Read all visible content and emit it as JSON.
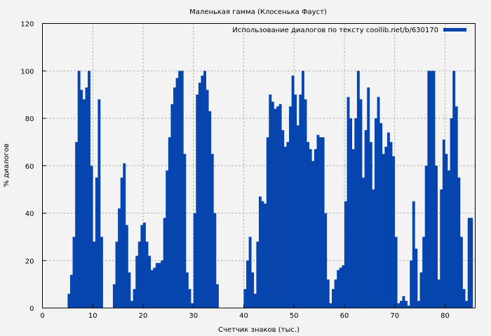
{
  "chart_data": {
    "type": "bar",
    "title": "Маленькая гамма (Клосенька Фауст)",
    "xlabel": "Счетчик знаков (тыс.)",
    "ylabel": "% диалогов",
    "xlim": [
      0,
      86
    ],
    "ylim": [
      0,
      120
    ],
    "xticks": [
      0,
      10,
      20,
      30,
      40,
      50,
      60,
      70,
      80
    ],
    "yticks": [
      0,
      20,
      40,
      60,
      80,
      100,
      120
    ],
    "grid": true,
    "legend_position": "top-right",
    "bar_step": 0.5,
    "series": [
      {
        "name": "Использование диалогов по тексту coollib.net/b/630170",
        "color": "#0645ad",
        "x": [
          5,
          5.5,
          6,
          6.5,
          7,
          7.5,
          8,
          8.5,
          9,
          9.5,
          10,
          10.5,
          11,
          11.5,
          14,
          14.5,
          15,
          15.5,
          16,
          16.5,
          17,
          17.5,
          18,
          18.5,
          19,
          19.5,
          20,
          20.5,
          21,
          21.5,
          22,
          22.5,
          23,
          23.5,
          24,
          24.5,
          25,
          25.5,
          26,
          26.5,
          27,
          27.5,
          28,
          28.5,
          29,
          29.5,
          30,
          30.5,
          31,
          31.5,
          32,
          32.5,
          33,
          33.5,
          34,
          34.5,
          40,
          40.5,
          41,
          41.5,
          42,
          42.5,
          43,
          43.5,
          44,
          44.5,
          45,
          45.5,
          46,
          46.5,
          47,
          47.5,
          48,
          48.5,
          49,
          49.5,
          50,
          50.5,
          51,
          51.5,
          52,
          52.5,
          53,
          53.5,
          54,
          54.5,
          55,
          55.5,
          56,
          56.5,
          57,
          57.5,
          58,
          58.5,
          59,
          59.5,
          60,
          60.5,
          61,
          61.5,
          62,
          62.5,
          63,
          63.5,
          64,
          64.5,
          65,
          65.5,
          66,
          66.5,
          67,
          67.5,
          68,
          68.5,
          69,
          69.5,
          70,
          70.5,
          71,
          71.5,
          72,
          72.5,
          73,
          73.5,
          74,
          74.5,
          75,
          75.5,
          76,
          76.5,
          77,
          77.5,
          78,
          78.5,
          79,
          79.5,
          80,
          80.5,
          81,
          81.5,
          82,
          82.5,
          83,
          83.5,
          84,
          84.5,
          85
        ],
        "values": [
          6,
          14,
          30,
          70,
          100,
          92,
          88,
          93,
          100,
          60,
          28,
          55,
          88,
          30,
          10,
          28,
          42,
          55,
          61,
          35,
          15,
          3,
          8,
          22,
          28,
          35,
          36,
          28,
          22,
          16,
          17,
          19,
          19,
          20,
          38,
          58,
          72,
          86,
          93,
          97,
          100,
          100,
          65,
          15,
          8,
          2,
          40,
          90,
          95,
          98,
          100,
          92,
          83,
          65,
          40,
          10,
          8,
          20,
          30,
          15,
          6,
          28,
          47,
          45,
          44,
          72,
          90,
          87,
          84,
          85,
          86,
          75,
          68,
          70,
          85,
          98,
          90,
          77,
          90,
          100,
          88,
          70,
          67,
          62,
          67,
          73,
          72,
          72,
          40,
          12,
          2,
          8,
          12,
          16,
          17,
          18,
          45,
          89,
          80,
          67,
          80,
          100,
          88,
          55,
          75,
          93,
          70,
          50,
          80,
          89,
          78,
          65,
          68,
          74,
          70,
          64,
          30,
          2,
          3,
          5,
          3,
          1,
          20,
          45,
          25,
          3,
          15,
          30,
          60,
          100,
          100,
          100,
          60,
          12,
          50,
          71,
          65,
          58,
          80,
          100,
          85,
          55,
          30,
          8,
          3,
          38,
          38
        ]
      }
    ]
  }
}
